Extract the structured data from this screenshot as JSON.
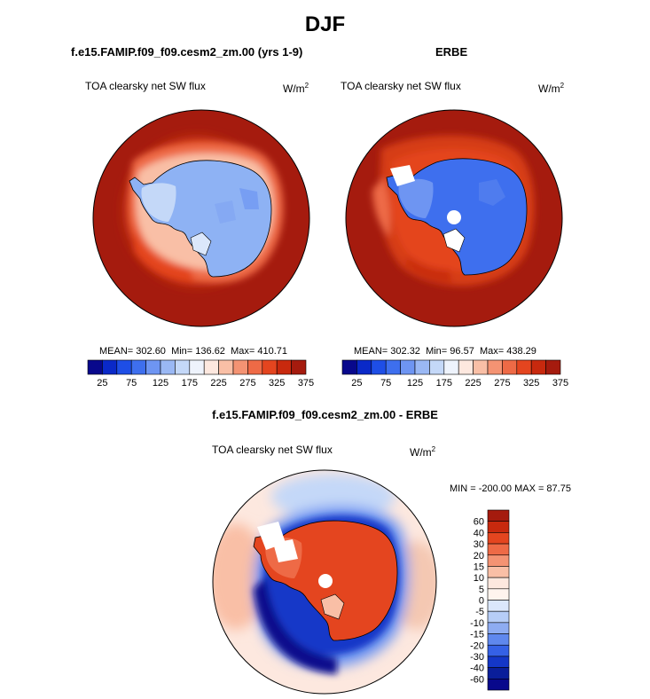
{
  "figure": {
    "title": "DJF",
    "colors": {
      "ocean_dark_red": "#a51b0e",
      "coastline": "#000000"
    }
  },
  "panels": [
    {
      "model_title": "f.e15.FAMIP.f09_f09.cesm2_zm.00 (yrs 1-9)",
      "variable": "TOA clearsky net SW flux",
      "units": "W/m",
      "units_exp": "2",
      "stats": {
        "mean_label": "MEAN=",
        "mean": "302.60",
        "min_label": "Min=",
        "min": "136.62",
        "max_label": "Max=",
        "max": "410.71"
      }
    },
    {
      "model_title": "ERBE",
      "variable": "TOA clearsky net SW flux",
      "units": "W/m",
      "units_exp": "2",
      "stats": {
        "mean_label": "MEAN=",
        "mean": "302.32",
        "min_label": "Min=",
        "min": "96.57",
        "max_label": "Max=",
        "max": "438.29"
      }
    },
    {
      "model_title": "f.e15.FAMIP.f09_f09.cesm2_zm.00 - ERBE",
      "variable": "TOA clearsky net SW flux",
      "units": "W/m",
      "units_exp": "2",
      "stats_text": "MIN = -200.00 MAX =  87.75"
    }
  ],
  "chart_data": [
    {
      "type": "heatmap",
      "projection": "south-polar-stereographic",
      "title": "f.e15.FAMIP.f09_f09.cesm2_zm.00 (yrs 1-9)",
      "subtitle": "TOA clearsky net SW flux",
      "units": "W/m2",
      "stats": {
        "mean": 302.6,
        "min": 136.62,
        "max": 410.71
      },
      "colorbar": {
        "orientation": "horizontal",
        "levels": [
          25,
          50,
          75,
          100,
          125,
          150,
          175,
          200,
          225,
          250,
          275,
          300,
          325,
          350,
          375
        ],
        "tick_labels": [
          "25",
          "75",
          "125",
          "175",
          "225",
          "275",
          "325",
          "375"
        ],
        "colors": [
          "#08088c",
          "#0a29c8",
          "#1e4ee6",
          "#3e6fee",
          "#6e95f2",
          "#9ab8f4",
          "#c4d8f8",
          "#eef3fc",
          "#fde8df",
          "#f9bfa6",
          "#f49373",
          "#ee6a46",
          "#e4451f",
          "#c8290e",
          "#a51b0e"
        ]
      }
    },
    {
      "type": "heatmap",
      "projection": "south-polar-stereographic",
      "title": "ERBE",
      "subtitle": "TOA clearsky net SW flux",
      "units": "W/m2",
      "stats": {
        "mean": 302.32,
        "min": 96.57,
        "max": 438.29
      },
      "colorbar": {
        "orientation": "horizontal",
        "levels": [
          25,
          50,
          75,
          100,
          125,
          150,
          175,
          200,
          225,
          250,
          275,
          300,
          325,
          350,
          375
        ],
        "tick_labels": [
          "25",
          "75",
          "125",
          "175",
          "225",
          "275",
          "325",
          "375"
        ],
        "colors": [
          "#08088c",
          "#0a29c8",
          "#1e4ee6",
          "#3e6fee",
          "#6e95f2",
          "#9ab8f4",
          "#c4d8f8",
          "#eef3fc",
          "#fde8df",
          "#f9bfa6",
          "#f49373",
          "#ee6a46",
          "#e4451f",
          "#c8290e",
          "#a51b0e"
        ]
      }
    },
    {
      "type": "heatmap",
      "projection": "south-polar-stereographic",
      "title": "f.e15.FAMIP.f09_f09.cesm2_zm.00 - ERBE",
      "subtitle": "TOA clearsky net SW flux",
      "units": "W/m2",
      "stats": {
        "min": -200.0,
        "max": 87.75
      },
      "colorbar": {
        "orientation": "vertical",
        "tick_labels": [
          "60",
          "40",
          "30",
          "20",
          "15",
          "10",
          "5",
          "0",
          "-5",
          "-10",
          "-15",
          "-20",
          "-30",
          "-40",
          "-60"
        ],
        "colors": [
          "#a51b0e",
          "#c8290e",
          "#e4451f",
          "#ee6a46",
          "#f49373",
          "#f9bfa6",
          "#fde8df",
          "#fff4ee",
          "#dbe7fb",
          "#b6cdf7",
          "#8eacf2",
          "#5f88ee",
          "#3561e6",
          "#1437c8",
          "#0a1e9a",
          "#08088c"
        ]
      }
    }
  ]
}
